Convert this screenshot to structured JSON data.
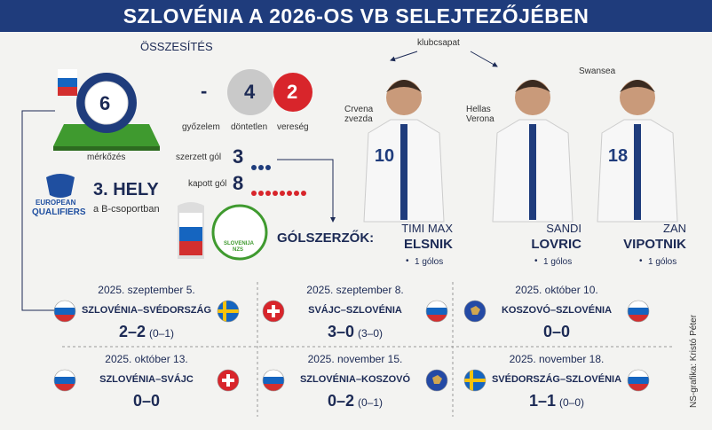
{
  "header": {
    "title": "SZLOVÉNIA A 2026-OS VB SELEJTEZŐJÉBEN"
  },
  "summary": {
    "heading": "ÖSSZESÍTÉS",
    "matches": {
      "value": "6",
      "label": "mérkőzés"
    },
    "wins": {
      "value": "-",
      "label": "győzelem"
    },
    "draws": {
      "value": "4",
      "label": "döntetlen"
    },
    "losses": {
      "value": "2",
      "label": "vereség"
    },
    "goals_scored": {
      "label": "szerzett gól",
      "value": 3
    },
    "goals_conceded": {
      "label": "kapott gól",
      "value": 8
    }
  },
  "standing": {
    "logo_top": "EUROPEAN",
    "logo_bottom": "QUALIFIERS",
    "place": "3. HELY",
    "group": "a B-csoportban"
  },
  "federation": {
    "name": "SLOVENIJA",
    "abbr": "NZS"
  },
  "scorers": {
    "heading": "GÓLSZERZŐK:",
    "club_label": "klubcsapat",
    "players": [
      {
        "club": "Crvena zvezda",
        "jersey": "10",
        "first_name": "TIMI MAX",
        "last_name": "ELSNIK",
        "goals": "1 gólos"
      },
      {
        "club": "Hellas Verona",
        "first_name": "SANDI",
        "last_name": "LOVRIC",
        "goals": "1 gólos"
      },
      {
        "club": "Swansea",
        "jersey": "18",
        "first_name": "ZAN",
        "last_name": "VIPOTNIK",
        "goals": "1 gólos"
      }
    ]
  },
  "matches": [
    {
      "date": "2025. szeptember 5.",
      "teams": "SZLOVÉNIA–SVÉDORSZÁG",
      "score": "2–2",
      "halftime": "(0–1)"
    },
    {
      "date": "2025. szeptember 8.",
      "teams": "SVÁJC–SZLOVÉNIA",
      "score": "3–0",
      "halftime": "(3–0)"
    },
    {
      "date": "2025. október 10.",
      "teams": "KOSZOVÓ–SZLOVÉNIA",
      "score": "0–0"
    },
    {
      "date": "2025. október 13.",
      "teams": "SZLOVÉNIA–SVÁJC",
      "score": "0–0"
    },
    {
      "date": "2025. november 15.",
      "teams": "SZLOVÉNIA–KOSZOVÓ",
      "score": "0–2",
      "halftime": "(0–1)"
    },
    {
      "date": "2025. november 18.",
      "teams": "SVÉDORSZÁG–SZLOVÉNIA",
      "score": "1–1",
      "halftime": "(0–0)"
    }
  ],
  "credit": "NS-grafika: Kristó Péter"
}
